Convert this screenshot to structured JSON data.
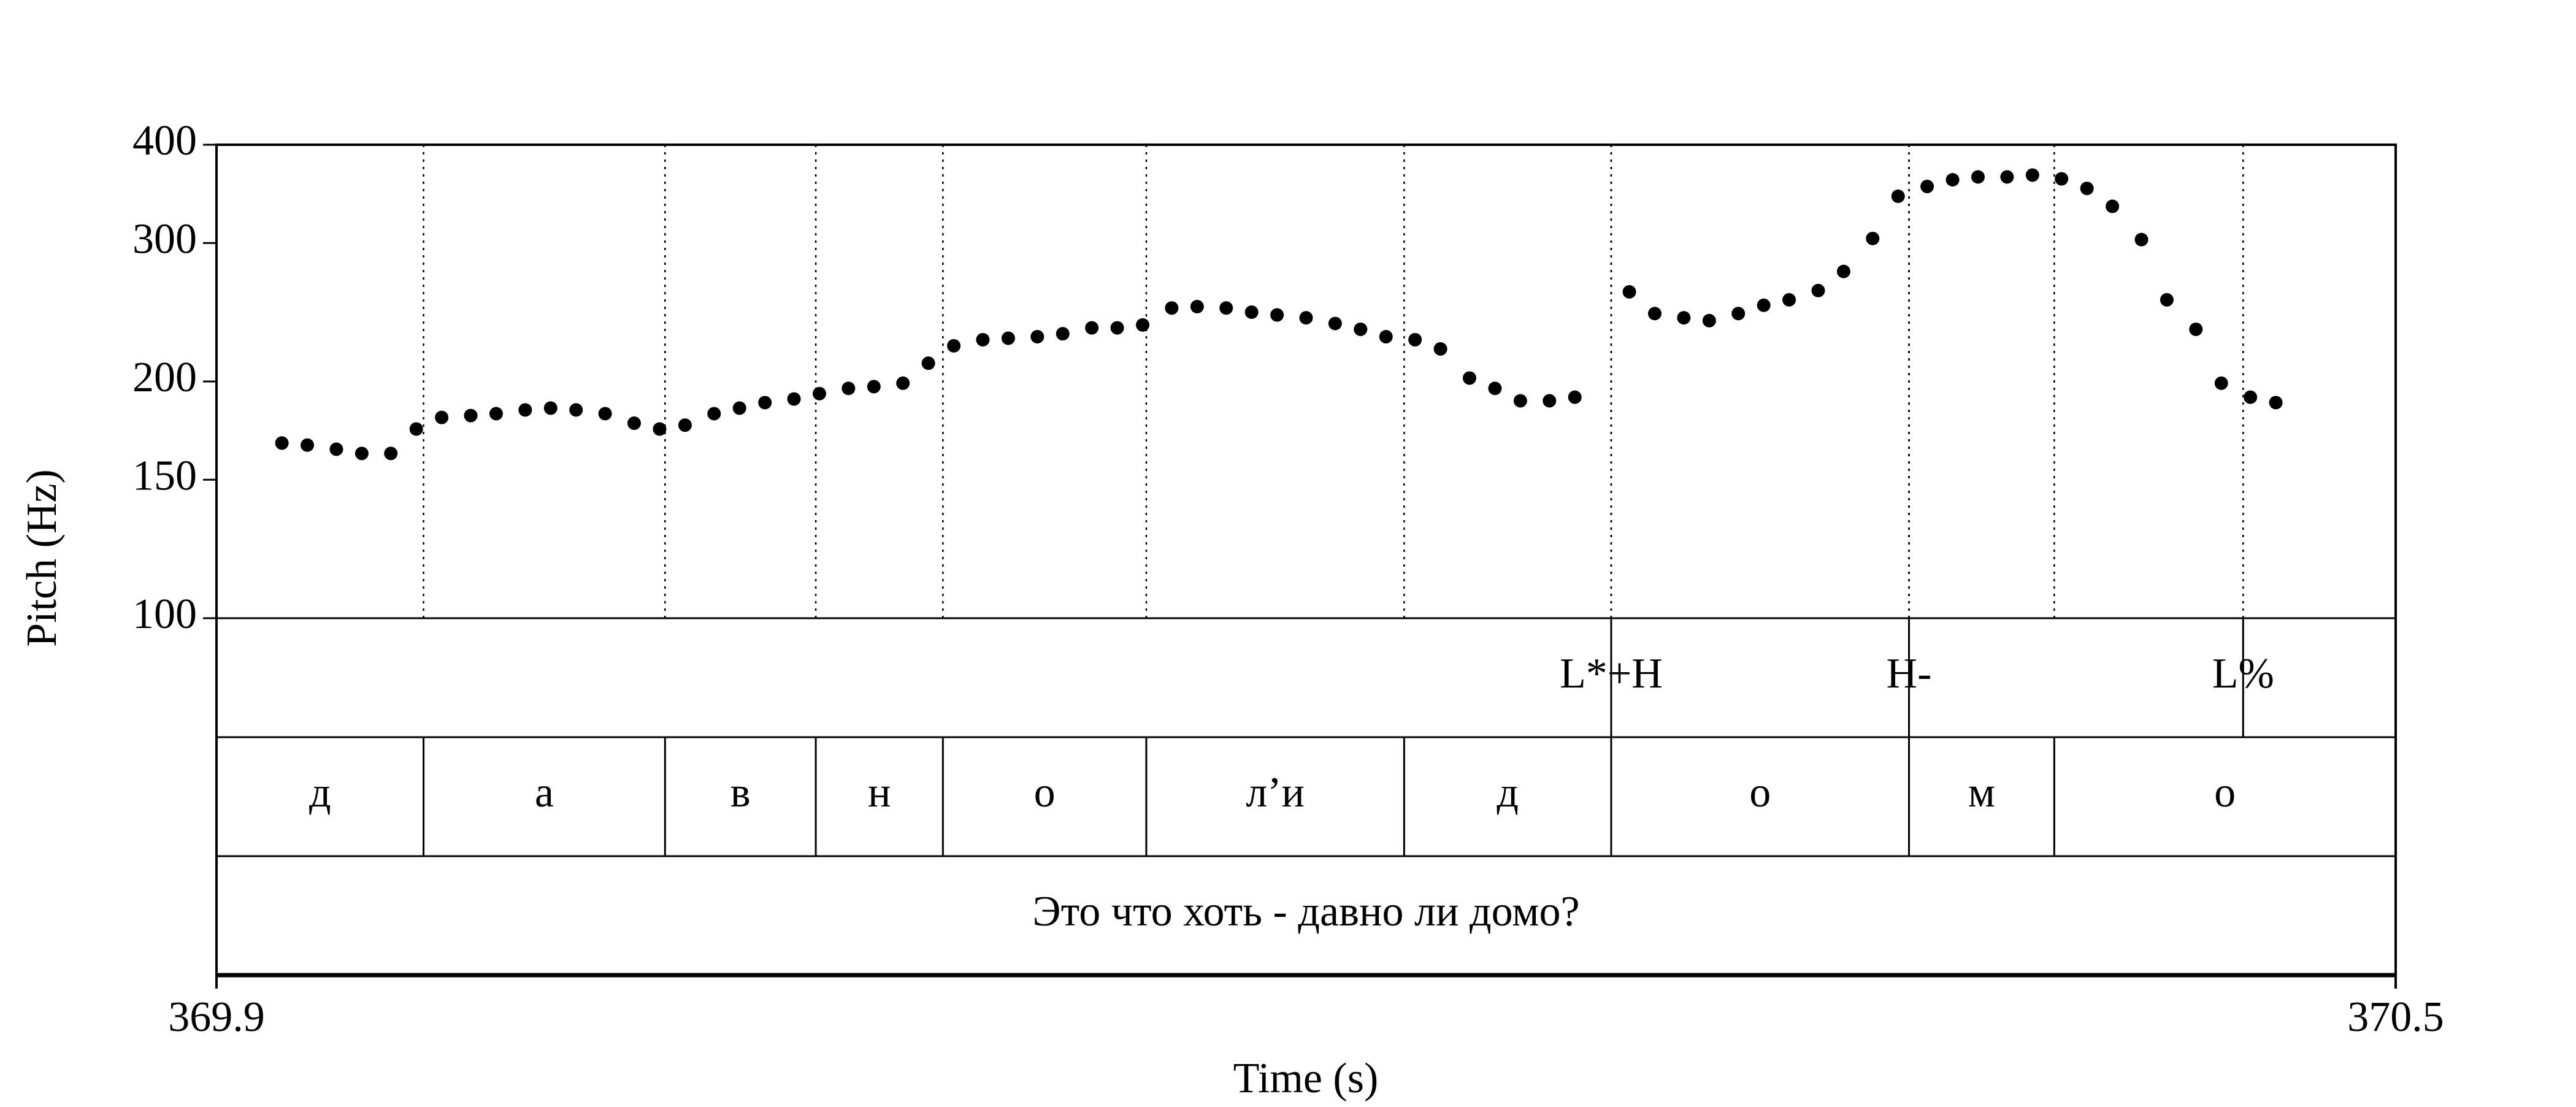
{
  "chart_data": {
    "type": "scatter",
    "y_label": "Pitch (Hz)",
    "x_label": "Time (s)",
    "xlim": [
      369.9,
      370.5
    ],
    "xticks": [
      369.9,
      370.5
    ],
    "ylim": [
      100,
      400
    ],
    "yticks": [
      100,
      150,
      200,
      300,
      400
    ],
    "log_y": true,
    "color": "#000000",
    "x": [
      369.918,
      369.925,
      369.933,
      369.94,
      369.948,
      369.955,
      369.962,
      369.97,
      369.977,
      369.985,
      369.992,
      369.999,
      370.007,
      370.015,
      370.022,
      370.029,
      370.037,
      370.044,
      370.051,
      370.059,
      370.066,
      370.074,
      370.081,
      370.089,
      370.096,
      370.103,
      370.111,
      370.118,
      370.126,
      370.133,
      370.141,
      370.148,
      370.155,
      370.163,
      370.17,
      370.178,
      370.185,
      370.192,
      370.2,
      370.208,
      370.215,
      370.222,
      370.23,
      370.237,
      370.245,
      370.252,
      370.259,
      370.267,
      370.274,
      370.289,
      370.296,
      370.304,
      370.311,
      370.319,
      370.326,
      370.333,
      370.341,
      370.348,
      370.356,
      370.363,
      370.371,
      370.378,
      370.385,
      370.393,
      370.4,
      370.408,
      370.415,
      370.422,
      370.43,
      370.437,
      370.445,
      370.452,
      370.46,
      370.467
    ],
    "values": [
      167,
      166,
      164,
      162,
      162,
      174,
      180,
      181,
      182,
      184,
      185,
      184,
      182,
      177,
      174,
      176,
      182,
      185,
      188,
      190,
      193,
      196,
      197,
      199,
      211,
      222,
      226,
      227,
      228,
      230,
      234,
      234,
      236,
      248,
      249,
      248,
      245,
      243,
      241,
      237,
      233,
      228,
      226,
      220,
      202,
      196,
      189,
      189,
      191,
      260,
      244,
      241,
      239,
      244,
      250,
      254,
      261,
      276,
      304,
      344,
      354,
      361,
      364,
      364,
      366,
      362,
      352,
      334,
      303,
      254,
      233,
      199,
      191,
      188
    ],
    "tones": [
      {
        "label": "L*+H",
        "time": 370.284
      },
      {
        "label": "H-",
        "time": 370.366
      },
      {
        "label": "L%",
        "time": 370.458
      }
    ],
    "segment_boundaries": [
      369.957,
      370.0235,
      370.065,
      370.1,
      370.156,
      370.227,
      370.284,
      370.366,
      370.406
    ],
    "segments": [
      "д",
      "а",
      "в",
      "н",
      "о",
      "л’и",
      "д",
      "о",
      "м",
      "о"
    ],
    "sentence": "Это что хоть - давно ли домо?"
  }
}
